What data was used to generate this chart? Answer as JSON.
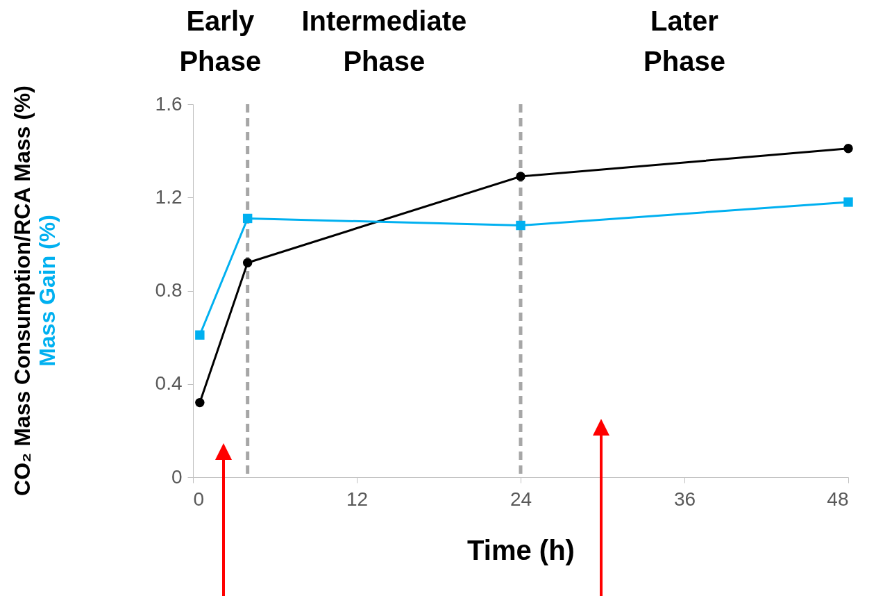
{
  "chart_data": {
    "type": "line",
    "xlabel": "Time (h)",
    "annotations": [
      "Early Phase",
      "Intermediate Phase",
      "Later Phase"
    ],
    "x": [
      0.5,
      4,
      24,
      48
    ],
    "series": [
      {
        "name": "CO₂ Mass Consumption/RCA Mass (%)",
        "color": "#000000",
        "marker": "circle",
        "values": [
          0.32,
          0.92,
          1.29,
          1.41
        ]
      },
      {
        "name": "Mass Gain (%)",
        "color": "#00b0f0",
        "marker": "square",
        "values": [
          0.61,
          1.11,
          1.08,
          1.18
        ]
      }
    ],
    "xlim": [
      0,
      48
    ],
    "xticks": [
      0,
      12,
      24,
      36,
      48
    ],
    "ylim": [
      0,
      1.6
    ],
    "yticks": [
      0,
      0.4,
      0.8,
      1.2,
      1.6
    ],
    "ref_lines": [
      {
        "axis": "x",
        "value": 4,
        "color": "#a6a6a6",
        "line_style": "dashed"
      },
      {
        "axis": "x",
        "value": 24,
        "color": "#a6a6a6",
        "line_style": "dashed"
      }
    ],
    "grid": false
  }
}
